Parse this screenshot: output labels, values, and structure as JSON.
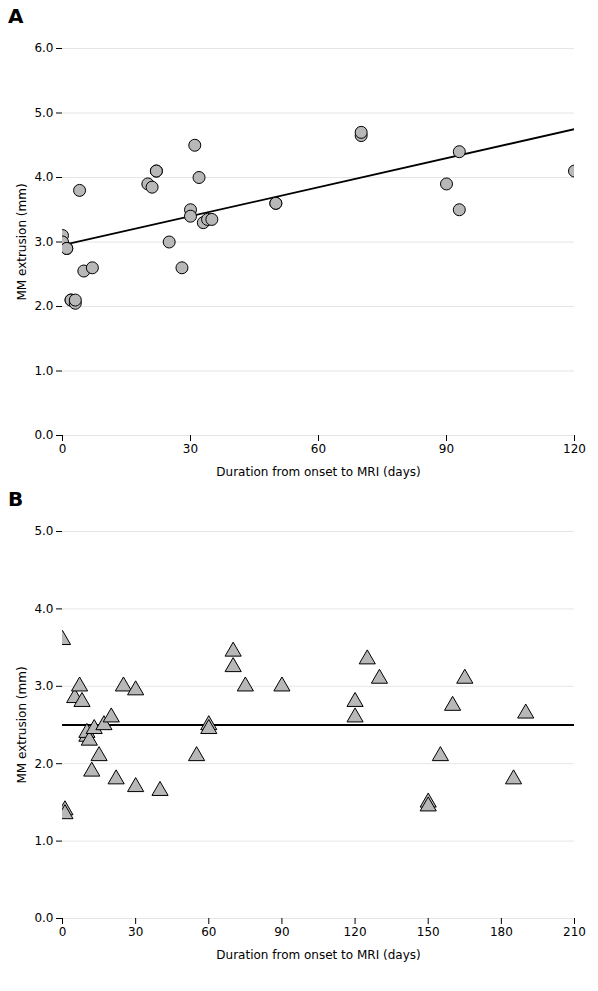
{
  "chart_data": [
    {
      "type": "scatter",
      "title": "A",
      "x": [
        0,
        0,
        1,
        1,
        2,
        2,
        3,
        3,
        4,
        5,
        7,
        20,
        21,
        22,
        22,
        25,
        28,
        30,
        30,
        31,
        32,
        33,
        34,
        35,
        50,
        50,
        70,
        70,
        90,
        93,
        93,
        120
      ],
      "values": [
        3.1,
        3.0,
        2.9,
        2.9,
        2.1,
        2.1,
        2.05,
        2.1,
        3.8,
        2.55,
        2.6,
        3.9,
        3.85,
        4.1,
        4.1,
        3.0,
        2.6,
        3.5,
        3.4,
        4.5,
        4.0,
        3.3,
        3.35,
        3.35,
        3.6,
        3.6,
        4.65,
        4.7,
        3.9,
        4.4,
        3.5,
        4.1
      ],
      "color": "#b8b8b8",
      "marker": "circle",
      "trendline": {
        "type": "line",
        "x": [
          0,
          120
        ],
        "values": [
          2.95,
          4.75
        ],
        "color": "#000000"
      },
      "xlabel": "Duration from onset to MRI (days)",
      "ylabel": "MM extrusion (mm)",
      "xlim": [
        0,
        120
      ],
      "ylim": [
        0,
        6
      ],
      "xticks": [
        0,
        30,
        60,
        90,
        120
      ],
      "yticks": [
        0,
        1,
        2,
        3,
        4,
        5,
        6
      ],
      "grid": true
    },
    {
      "type": "scatter",
      "title": "B",
      "x": [
        0,
        1,
        1,
        5,
        7,
        8,
        10,
        10,
        11,
        12,
        13,
        15,
        17,
        20,
        22,
        25,
        30,
        30,
        40,
        55,
        60,
        60,
        70,
        70,
        75,
        90,
        120,
        120,
        125,
        130,
        150,
        150,
        155,
        160,
        165,
        185,
        190
      ],
      "values": [
        3.6,
        1.4,
        1.35,
        2.85,
        3.0,
        2.8,
        2.35,
        2.4,
        2.3,
        1.9,
        2.45,
        2.1,
        2.5,
        2.6,
        1.8,
        3.0,
        2.95,
        1.7,
        1.65,
        2.1,
        2.5,
        2.45,
        3.45,
        3.25,
        3.0,
        3.0,
        2.8,
        2.6,
        3.35,
        3.1,
        1.5,
        1.45,
        2.1,
        2.75,
        3.1,
        1.8,
        2.65
      ],
      "color": "#b8b8b8",
      "marker": "triangle",
      "trendline": {
        "type": "line",
        "x": [
          0,
          210
        ],
        "values": [
          2.5,
          2.5
        ],
        "color": "#000000"
      },
      "xlabel": "Duration from onset to MRI (days)",
      "ylabel": "MM extrusion (mm)",
      "xlim": [
        0,
        210
      ],
      "ylim": [
        0,
        5
      ],
      "xticks": [
        0,
        30,
        60,
        90,
        120,
        150,
        180,
        210
      ],
      "yticks": [
        0,
        1,
        2,
        3,
        4,
        5
      ],
      "grid": true
    }
  ]
}
